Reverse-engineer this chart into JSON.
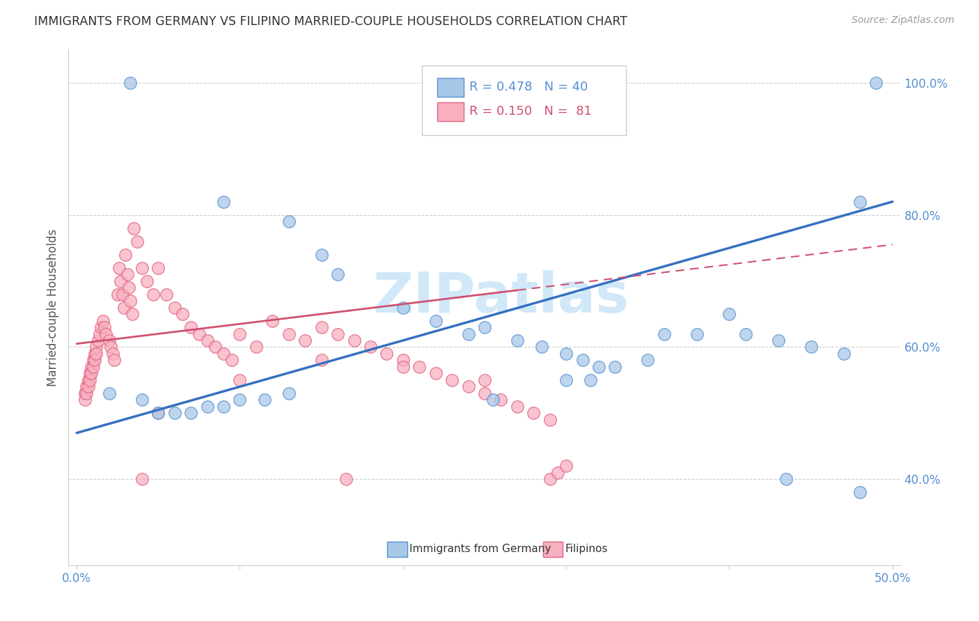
{
  "title": "IMMIGRANTS FROM GERMANY VS FILIPINO MARRIED-COUPLE HOUSEHOLDS CORRELATION CHART",
  "source": "Source: ZipAtlas.com",
  "ylabel": "Married-couple Households",
  "ylabel_right_ticks": [
    "40.0%",
    "60.0%",
    "80.0%",
    "100.0%"
  ],
  "ylabel_right_values": [
    0.4,
    0.6,
    0.8,
    1.0
  ],
  "blue_color": "#a8c8e8",
  "blue_edge_color": "#5590d0",
  "blue_line_color": "#3570c0",
  "pink_color": "#f8b0c0",
  "pink_edge_color": "#e06080",
  "pink_line_color": "#d05070",
  "watermark_color": "#d0e8f8",
  "blue_scatter_x": [
    0.033,
    0.49,
    0.48,
    0.09,
    0.13,
    0.15,
    0.16,
    0.2,
    0.22,
    0.24,
    0.25,
    0.27,
    0.285,
    0.3,
    0.31,
    0.32,
    0.33,
    0.35,
    0.36,
    0.38,
    0.4,
    0.41,
    0.43,
    0.45,
    0.47,
    0.255,
    0.3,
    0.315,
    0.02,
    0.04,
    0.05,
    0.06,
    0.07,
    0.08,
    0.09,
    0.1,
    0.115,
    0.13,
    0.435,
    0.48
  ],
  "blue_scatter_y": [
    1.0,
    1.0,
    0.82,
    0.82,
    0.79,
    0.74,
    0.71,
    0.66,
    0.64,
    0.62,
    0.63,
    0.61,
    0.6,
    0.59,
    0.58,
    0.57,
    0.57,
    0.58,
    0.62,
    0.62,
    0.65,
    0.62,
    0.61,
    0.6,
    0.59,
    0.52,
    0.55,
    0.55,
    0.53,
    0.52,
    0.5,
    0.5,
    0.5,
    0.51,
    0.51,
    0.52,
    0.52,
    0.53,
    0.4,
    0.38
  ],
  "pink_scatter_x": [
    0.005,
    0.006,
    0.007,
    0.008,
    0.009,
    0.01,
    0.011,
    0.012,
    0.013,
    0.014,
    0.015,
    0.016,
    0.017,
    0.018,
    0.02,
    0.021,
    0.022,
    0.023,
    0.025,
    0.026,
    0.027,
    0.028,
    0.029,
    0.03,
    0.031,
    0.032,
    0.033,
    0.034,
    0.035,
    0.037,
    0.04,
    0.043,
    0.047,
    0.05,
    0.055,
    0.06,
    0.065,
    0.07,
    0.075,
    0.08,
    0.085,
    0.09,
    0.095,
    0.1,
    0.11,
    0.12,
    0.13,
    0.14,
    0.15,
    0.16,
    0.17,
    0.18,
    0.19,
    0.2,
    0.21,
    0.22,
    0.23,
    0.24,
    0.25,
    0.26,
    0.27,
    0.28,
    0.29,
    0.005,
    0.006,
    0.007,
    0.008,
    0.009,
    0.01,
    0.011,
    0.012,
    0.04,
    0.165,
    0.29,
    0.295,
    0.3,
    0.05,
    0.1,
    0.15,
    0.2,
    0.25
  ],
  "pink_scatter_y": [
    0.53,
    0.54,
    0.55,
    0.56,
    0.57,
    0.58,
    0.59,
    0.6,
    0.61,
    0.62,
    0.63,
    0.64,
    0.63,
    0.62,
    0.61,
    0.6,
    0.59,
    0.58,
    0.68,
    0.72,
    0.7,
    0.68,
    0.66,
    0.74,
    0.71,
    0.69,
    0.67,
    0.65,
    0.78,
    0.76,
    0.72,
    0.7,
    0.68,
    0.72,
    0.68,
    0.66,
    0.65,
    0.63,
    0.62,
    0.61,
    0.6,
    0.59,
    0.58,
    0.62,
    0.6,
    0.64,
    0.62,
    0.61,
    0.63,
    0.62,
    0.61,
    0.6,
    0.59,
    0.58,
    0.57,
    0.56,
    0.55,
    0.54,
    0.53,
    0.52,
    0.51,
    0.5,
    0.49,
    0.52,
    0.53,
    0.54,
    0.55,
    0.56,
    0.57,
    0.58,
    0.59,
    0.4,
    0.4,
    0.4,
    0.41,
    0.42,
    0.5,
    0.55,
    0.58,
    0.57,
    0.55
  ],
  "blue_line_x0": 0.0,
  "blue_line_x1": 0.5,
  "blue_line_y0": 0.47,
  "blue_line_y1": 0.82,
  "pink_line_x0": 0.0,
  "pink_line_x1": 0.5,
  "pink_line_y0": 0.605,
  "pink_line_y1": 0.755,
  "xmin": -0.005,
  "xmax": 0.505,
  "ymin": 0.27,
  "ymax": 1.05
}
